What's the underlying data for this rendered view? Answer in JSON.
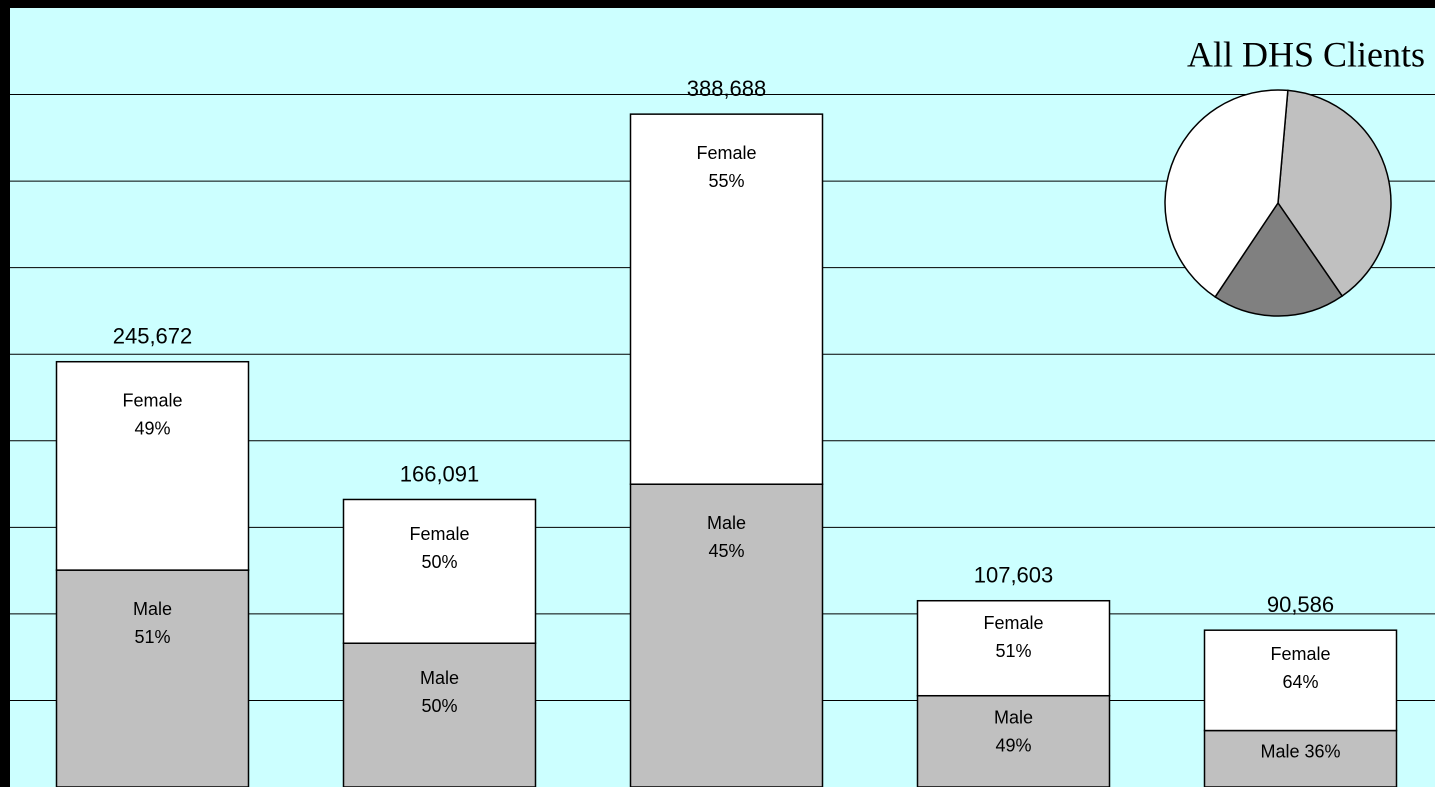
{
  "chart_data": [
    {
      "type": "bar",
      "categories": [
        null,
        null,
        null,
        null,
        null
      ],
      "totals": [
        245672,
        166091,
        388688,
        107603,
        90586
      ],
      "total_labels": [
        "245,672",
        "166,091",
        "388,688",
        "107,603",
        "90,586"
      ],
      "series": [
        {
          "name": "Male",
          "color": "#c0c0c0",
          "shares": [
            51,
            50,
            45,
            49,
            36
          ],
          "share_labels": [
            "51%",
            "50%",
            "45%",
            "49%",
            "36%"
          ]
        },
        {
          "name": "Female",
          "color": "#ffffff",
          "shares": [
            49,
            50,
            55,
            51,
            64
          ],
          "share_labels": [
            "49%",
            "50%",
            "55%",
            "51%",
            "64%"
          ]
        }
      ],
      "ylim": [
        0,
        450000
      ],
      "yticks": [
        50000,
        100000,
        150000,
        200000,
        250000,
        300000,
        350000,
        400000
      ],
      "grid": true,
      "background": "#ccffff"
    },
    {
      "type": "pie",
      "title": "All DHS Clients",
      "values": [
        39,
        19,
        42
      ],
      "colors": [
        "#c0c0c0",
        "#808080",
        "#ffffff"
      ],
      "startangle": 5
    }
  ]
}
